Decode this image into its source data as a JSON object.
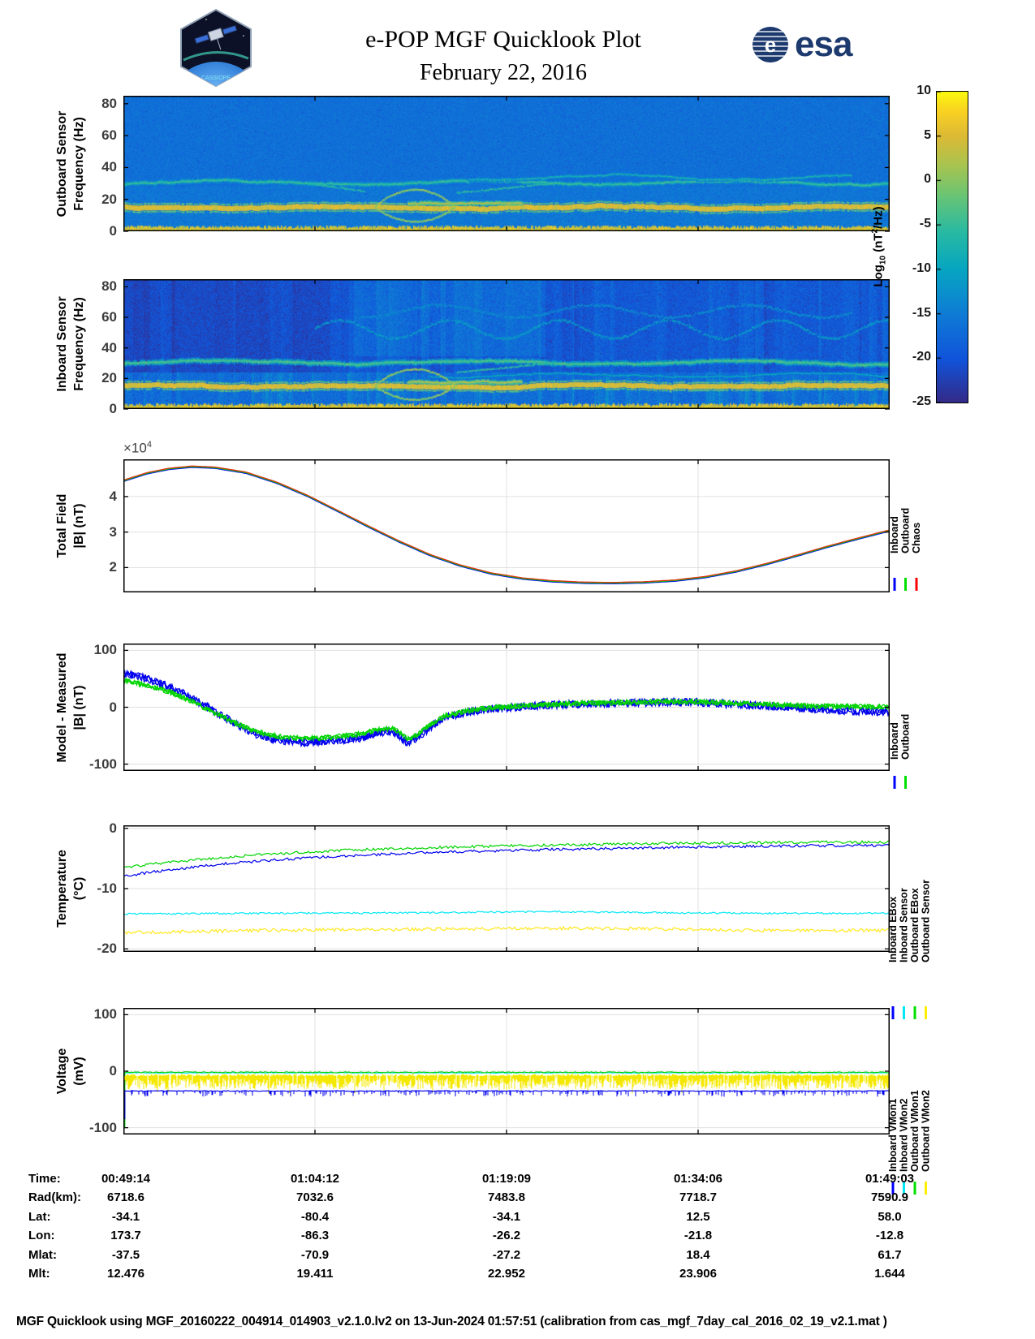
{
  "header": {
    "title": "e-POP MGF Quicklook Plot",
    "date": "February 22, 2016",
    "esa_text": "esa",
    "patch_text": "CASSIOPE"
  },
  "colorbar": {
    "label": {
      "prefix": "Log",
      "sub": "10",
      "mid": " (nT",
      "sup": "2",
      "suffix": "/Hz)"
    },
    "ticks": [
      10,
      5,
      0,
      -5,
      -10,
      -15,
      -20,
      -25
    ],
    "min": -25,
    "max": 10
  },
  "chart_data": [
    {
      "type": "heatmap",
      "name": "outboard-spectrogram",
      "ylabel": [
        "Outboard Sensor",
        "Frequency (Hz)"
      ],
      "yticks": [
        0,
        20,
        40,
        60,
        80
      ],
      "ylim": [
        0,
        85
      ],
      "colorbar_range": [
        -25,
        10
      ],
      "background_db": -16.5,
      "noise_db": 1.7,
      "vertical_stripes": false,
      "patches": [
        {
          "t0": 0,
          "t1": 1,
          "f0": 0,
          "f1": 12,
          "add": 1.0
        },
        {
          "t0": 0,
          "t1": 1,
          "f0": 12,
          "f1": 28,
          "add": 0.7
        }
      ],
      "features": [
        {
          "kind": "band",
          "freq": 15,
          "thick": 3.2,
          "power": 4.5,
          "wiggle": 0.5
        },
        {
          "kind": "band",
          "freq": 17.5,
          "thick": 1.2,
          "power": 2.5,
          "wiggle": 0.3,
          "t0": 0.37,
          "t1": 0.52
        },
        {
          "kind": "band",
          "freq": 30.5,
          "thick": 1.4,
          "power": -5.5,
          "wiggle": 1.2
        },
        {
          "kind": "band",
          "freq": 33.5,
          "thick": 1.1,
          "power": -8,
          "wiggle": 1.5,
          "t0": 0.45,
          "t1": 0.95
        },
        {
          "kind": "bottom",
          "power": 5
        },
        {
          "kind": "eye",
          "t": 0.38,
          "halfwidth": 0.052,
          "freq": 15,
          "up": 11,
          "down": 9,
          "power": 0
        },
        {
          "kind": "seg",
          "x0": 0.24,
          "f0": 30,
          "x1": 0.315,
          "f1": 25,
          "power": -6
        },
        {
          "kind": "seg",
          "x0": 0.435,
          "f0": 24,
          "x1": 0.56,
          "f1": 30,
          "power": -6
        }
      ]
    },
    {
      "type": "heatmap",
      "name": "inboard-spectrogram",
      "ylabel": [
        "Inboard Sensor",
        "Frequency (Hz)"
      ],
      "yticks": [
        0,
        20,
        40,
        60,
        80
      ],
      "ylim": [
        0,
        85
      ],
      "colorbar_range": [
        -25,
        10
      ],
      "background_db": -19.5,
      "noise_db": 2.3,
      "vertical_stripes": true,
      "patches": [
        {
          "t0": 0,
          "t1": 1,
          "f0": 0,
          "f1": 24,
          "add": 2.4
        },
        {
          "t0": 0,
          "t1": 0.27,
          "f0": 24,
          "f1": 85,
          "add": -1.6
        },
        {
          "t0": 0.3,
          "t1": 0.55,
          "f0": 35,
          "f1": 85,
          "add": 2.2
        }
      ],
      "features": [
        {
          "kind": "band",
          "freq": 15,
          "thick": 3.2,
          "power": 4.5,
          "wiggle": 0.5
        },
        {
          "kind": "band",
          "freq": 17.5,
          "thick": 1.2,
          "power": 2.5,
          "wiggle": 0.3,
          "t0": 0.37,
          "t1": 0.52
        },
        {
          "kind": "band",
          "freq": 30.5,
          "thick": 1.8,
          "power": -4.5,
          "wiggle": 1.3
        },
        {
          "kind": "band",
          "freq": 22,
          "thick": 1.1,
          "power": -10,
          "wiggle": 1.0,
          "t0": 0.4,
          "t1": 1
        },
        {
          "kind": "wavy",
          "freq": 52,
          "amp": 6,
          "cycles": 7,
          "power": -11,
          "t0": 0.25,
          "t1": 1
        },
        {
          "kind": "wavy",
          "freq": 64,
          "amp": 4,
          "cycles": 5,
          "power": -13,
          "t0": 0.3,
          "t1": 0.95
        },
        {
          "kind": "bottom",
          "power": 5
        },
        {
          "kind": "eye",
          "t": 0.38,
          "halfwidth": 0.052,
          "freq": 15,
          "up": 11,
          "down": 9,
          "power": 0
        },
        {
          "kind": "seg",
          "x0": 0.435,
          "f0": 24,
          "x1": 0.56,
          "f1": 30,
          "power": -6
        }
      ]
    },
    {
      "type": "line",
      "name": "total-field",
      "ylabel": [
        "Total Field",
        "|B| (nT)"
      ],
      "yticks": [
        2,
        3,
        4
      ],
      "ylim": [
        1.3,
        5.05
      ],
      "exponent": {
        "mult": "×10",
        "sup": "4"
      },
      "unit_scale": "1e4 nT",
      "points": [
        [
          0,
          4.45
        ],
        [
          0.03,
          4.66
        ],
        [
          0.06,
          4.79
        ],
        [
          0.09,
          4.85
        ],
        [
          0.12,
          4.82
        ],
        [
          0.16,
          4.68
        ],
        [
          0.2,
          4.4
        ],
        [
          0.24,
          4.03
        ],
        [
          0.28,
          3.6
        ],
        [
          0.32,
          3.16
        ],
        [
          0.36,
          2.74
        ],
        [
          0.4,
          2.36
        ],
        [
          0.44,
          2.06
        ],
        [
          0.48,
          1.84
        ],
        [
          0.52,
          1.7
        ],
        [
          0.56,
          1.62
        ],
        [
          0.6,
          1.58
        ],
        [
          0.64,
          1.57
        ],
        [
          0.68,
          1.59
        ],
        [
          0.72,
          1.64
        ],
        [
          0.76,
          1.74
        ],
        [
          0.8,
          1.9
        ],
        [
          0.84,
          2.11
        ],
        [
          0.88,
          2.35
        ],
        [
          0.92,
          2.6
        ],
        [
          0.96,
          2.83
        ],
        [
          1,
          3.05
        ]
      ],
      "series": [
        {
          "name": "Inboard",
          "color": "#0000ff",
          "style": "noisyline",
          "width": 1.4,
          "step": 4,
          "dy": 1.1
        },
        {
          "name": "Outboard",
          "color": "#00cc00",
          "style": "noisyline",
          "width": 1.3,
          "step": 4,
          "dy": 0.3
        },
        {
          "name": "Chaos",
          "color": "#e03010",
          "style": "noisyline",
          "width": 1.3,
          "step": 4,
          "dy": -0.5
        }
      ],
      "legend": [
        {
          "name": "Inboard",
          "color": "#0000ff"
        },
        {
          "name": "Outboard",
          "color": "#00e000"
        },
        {
          "name": "Chaos",
          "color": "#ff0000"
        }
      ]
    },
    {
      "type": "line",
      "name": "model-minus-measured",
      "ylabel": [
        "Model - Measured",
        "|B| (nT)"
      ],
      "yticks": [
        100,
        0,
        -100
      ],
      "ylim": [
        -112,
        112
      ],
      "series": [
        {
          "name": "Inboard",
          "color": "#0000ee",
          "style": "noisyline",
          "noise": 7,
          "step": 1.5,
          "passes": 3,
          "width": 1.3,
          "points": [
            [
              0,
              60
            ],
            [
              0.03,
              50
            ],
            [
              0.06,
              36
            ],
            [
              0.09,
              16
            ],
            [
              0.12,
              -8
            ],
            [
              0.15,
              -32
            ],
            [
              0.17,
              -46
            ],
            [
              0.2,
              -58
            ],
            [
              0.23,
              -62
            ],
            [
              0.26,
              -61
            ],
            [
              0.29,
              -57
            ],
            [
              0.31,
              -54
            ],
            [
              0.33,
              -46
            ],
            [
              0.35,
              -42
            ],
            [
              0.36,
              -50
            ],
            [
              0.37,
              -62
            ],
            [
              0.38,
              -58
            ],
            [
              0.4,
              -36
            ],
            [
              0.42,
              -18
            ],
            [
              0.45,
              -8
            ],
            [
              0.48,
              -3
            ],
            [
              0.52,
              1
            ],
            [
              0.56,
              4
            ],
            [
              0.6,
              6
            ],
            [
              0.64,
              7
            ],
            [
              0.68,
              8
            ],
            [
              0.72,
              9
            ],
            [
              0.76,
              8
            ],
            [
              0.8,
              5
            ],
            [
              0.84,
              2
            ],
            [
              0.88,
              -1
            ],
            [
              0.92,
              -4
            ],
            [
              0.96,
              -7
            ],
            [
              1,
              -9
            ]
          ]
        },
        {
          "name": "Outboard",
          "color": "#00d400",
          "style": "noisyline",
          "noise": 4.5,
          "step": 1.5,
          "passes": 3,
          "width": 1.3,
          "points": [
            [
              0,
              47
            ],
            [
              0.03,
              39
            ],
            [
              0.06,
              27
            ],
            [
              0.09,
              10
            ],
            [
              0.12,
              -11
            ],
            [
              0.15,
              -30
            ],
            [
              0.17,
              -42
            ],
            [
              0.2,
              -51
            ],
            [
              0.23,
              -55
            ],
            [
              0.26,
              -54
            ],
            [
              0.29,
              -50
            ],
            [
              0.31,
              -47
            ],
            [
              0.33,
              -40
            ],
            [
              0.35,
              -37
            ],
            [
              0.36,
              -44
            ],
            [
              0.37,
              -55
            ],
            [
              0.38,
              -51
            ],
            [
              0.4,
              -31
            ],
            [
              0.42,
              -15
            ],
            [
              0.45,
              -6
            ],
            [
              0.48,
              -1
            ],
            [
              0.52,
              2
            ],
            [
              0.56,
              5
            ],
            [
              0.6,
              7
            ],
            [
              0.64,
              8
            ],
            [
              0.68,
              9
            ],
            [
              0.72,
              10
            ],
            [
              0.76,
              9
            ],
            [
              0.8,
              7
            ],
            [
              0.84,
              5
            ],
            [
              0.88,
              3
            ],
            [
              0.92,
              2
            ],
            [
              0.96,
              1
            ],
            [
              1,
              1
            ]
          ]
        }
      ],
      "legend": [
        {
          "name": "Inboard",
          "color": "#0000ff"
        },
        {
          "name": "Outboard",
          "color": "#00e000"
        }
      ]
    },
    {
      "type": "line",
      "name": "temperature",
      "ylabel": [
        "Temperature",
        "(°C)"
      ],
      "yticks": [
        0,
        -10,
        -20
      ],
      "ylim": [
        -20.5,
        0.5
      ],
      "series": [
        {
          "name": "Inboard EBox",
          "color": "#0000ee",
          "style": "noisyline",
          "noise": 0.22,
          "step": 2,
          "width": 1.2,
          "points": [
            [
              0,
              -8
            ],
            [
              0.04,
              -7.2
            ],
            [
              0.08,
              -6.6
            ],
            [
              0.14,
              -5.8
            ],
            [
              0.2,
              -5.2
            ],
            [
              0.3,
              -4.5
            ],
            [
              0.4,
              -4.0
            ],
            [
              0.5,
              -3.7
            ],
            [
              0.6,
              -3.4
            ],
            [
              0.7,
              -3.2
            ],
            [
              0.8,
              -3.0
            ],
            [
              0.9,
              -2.9
            ],
            [
              1,
              -2.8
            ]
          ]
        },
        {
          "name": "Inboard Sensor",
          "color": "#00e8f5",
          "style": "noisyline",
          "noise": 0.14,
          "step": 2,
          "width": 1.2,
          "points": [
            [
              0,
              -14.2
            ],
            [
              0.2,
              -14.1
            ],
            [
              0.4,
              -14.0
            ],
            [
              0.55,
              -13.8
            ],
            [
              0.7,
              -14.0
            ],
            [
              0.85,
              -14.1
            ],
            [
              1,
              -14.1
            ]
          ]
        },
        {
          "name": "Outboard EBox",
          "color": "#00d400",
          "style": "noisyline",
          "noise": 0.22,
          "step": 2,
          "width": 1.2,
          "points": [
            [
              0,
              -6.5
            ],
            [
              0.04,
              -5.9
            ],
            [
              0.08,
              -5.4
            ],
            [
              0.14,
              -4.7
            ],
            [
              0.2,
              -4.2
            ],
            [
              0.3,
              -3.6
            ],
            [
              0.4,
              -3.2
            ],
            [
              0.5,
              -2.9
            ],
            [
              0.6,
              -2.7
            ],
            [
              0.7,
              -2.5
            ],
            [
              0.8,
              -2.4
            ],
            [
              0.9,
              -2.3
            ],
            [
              1,
              -2.3
            ]
          ]
        },
        {
          "name": "Outboard Sensor",
          "color": "#ffe820",
          "style": "noisyline",
          "noise": 0.28,
          "step": 2,
          "width": 1.2,
          "points": [
            [
              0,
              -17.3
            ],
            [
              0.1,
              -17.1
            ],
            [
              0.2,
              -16.9
            ],
            [
              0.3,
              -16.8
            ],
            [
              0.4,
              -16.7
            ],
            [
              0.5,
              -16.6
            ],
            [
              0.6,
              -16.6
            ],
            [
              0.7,
              -16.7
            ],
            [
              0.8,
              -16.9
            ],
            [
              0.9,
              -17.0
            ],
            [
              1,
              -16.9
            ]
          ]
        }
      ],
      "legend": [
        {
          "name": "Inboard EBox",
          "color": "#0000ff"
        },
        {
          "name": "Inboard Sensor",
          "color": "#00e8f5"
        },
        {
          "name": "Outboard EBox",
          "color": "#00e000"
        },
        {
          "name": "Outboard Sensor",
          "color": "#ffee00"
        }
      ]
    },
    {
      "type": "line",
      "name": "voltage",
      "ylabel": [
        "Voltage",
        "(mV)"
      ],
      "yticks": [
        100,
        0,
        -100
      ],
      "ylim": [
        -112,
        112
      ],
      "series": [
        {
          "name": "Inboard VMon2",
          "color": "#00e8f5",
          "style": "noisyline",
          "base": -3,
          "noise": 0.6,
          "step": 2,
          "width": 1
        },
        {
          "name": "Outboard VMon1",
          "color": "#00d400",
          "style": "noisyline",
          "base": -2,
          "noise": 0.9,
          "step": 2,
          "width": 1.1,
          "init_spike": -100
        },
        {
          "name": "Outboard VMon2",
          "color": "#f5e800",
          "style": "spikeband",
          "top": -7,
          "mid": -12,
          "spread": 20
        },
        {
          "name": "Inboard VMon1",
          "color": "#0000ee",
          "style": "noisyline",
          "base": -35,
          "noise": 0.6,
          "step": 2,
          "width": 1.2,
          "spikes": {
            "prob": 0.22,
            "depth": -10
          },
          "init_spike": -85
        }
      ],
      "legend": [
        {
          "name": "Inboard VMon1",
          "color": "#0000ff"
        },
        {
          "name": "Inboard VMon2",
          "color": "#00e8f5"
        },
        {
          "name": "Outboard VMon1",
          "color": "#00e000"
        },
        {
          "name": "Outboard VMon2",
          "color": "#ffee00"
        }
      ]
    }
  ],
  "bottom_table": {
    "rows": [
      {
        "label": "Time:",
        "values": [
          "00:49:14",
          "01:04:12",
          "01:19:09",
          "01:34:06",
          "01:49:03"
        ]
      },
      {
        "label": "Rad(km):",
        "values": [
          "6718.6",
          "7032.6",
          "7483.8",
          "7718.7",
          "7590.9"
        ]
      },
      {
        "label": "Lat:",
        "values": [
          "-34.1",
          "-80.4",
          "-34.1",
          "12.5",
          "58.0"
        ]
      },
      {
        "label": "Lon:",
        "values": [
          "173.7",
          "-86.3",
          "-26.2",
          "-21.8",
          "-12.8"
        ]
      },
      {
        "label": "Mlat:",
        "values": [
          "-37.5",
          "-70.9",
          "-27.2",
          "18.4",
          "61.7"
        ]
      },
      {
        "label": "Mlt:",
        "values": [
          "12.476",
          "19.411",
          "22.952",
          "23.906",
          "1.644"
        ]
      }
    ]
  },
  "footer": {
    "text": "MGF Quicklook using MGF_20160222_004914_014903_v2.1.0.lv2 on 13-Jun-2024 01:57:51 (calibration from cas_mgf_7day_cal_2016_02_19_v2.1.mat )"
  }
}
